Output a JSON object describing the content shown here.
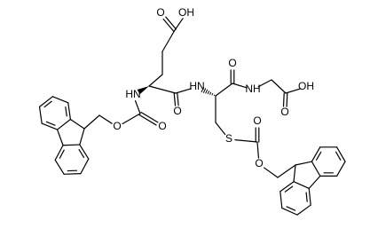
{
  "atom_labels": [
    "O",
    "OH",
    "HN",
    "O",
    "HN",
    "O",
    "NH",
    "OH",
    "O",
    "O",
    "O",
    "S",
    "O",
    "O"
  ]
}
